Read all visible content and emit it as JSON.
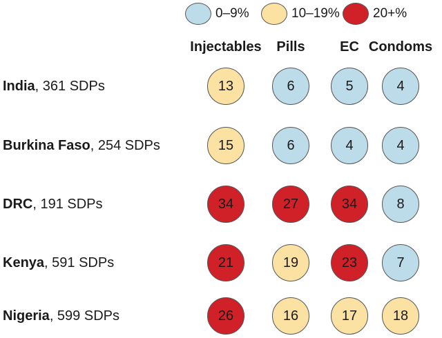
{
  "colors": {
    "low": "#bcdcea",
    "mid": "#fbe2a3",
    "high": "#d02128"
  },
  "chart_data": {
    "type": "table",
    "title": "",
    "legend": [
      {
        "label": "0–9%",
        "level": "low"
      },
      {
        "label": "10–19%",
        "level": "mid"
      },
      {
        "label": "20+%",
        "level": "high"
      }
    ],
    "columns": [
      "Injectables",
      "Pills",
      "EC",
      "Condoms"
    ],
    "rows": [
      {
        "country": "India",
        "detail": ", 361 SDPs",
        "values": [
          13,
          6,
          5,
          4
        ]
      },
      {
        "country": "Burkina Faso",
        "detail": ", 254 SDPs",
        "values": [
          15,
          6,
          4,
          4
        ]
      },
      {
        "country": "DRC",
        "detail": ", 191 SDPs",
        "values": [
          34,
          27,
          34,
          8
        ]
      },
      {
        "country": "Kenya",
        "detail": ", 591 SDPs",
        "values": [
          21,
          19,
          23,
          7
        ]
      },
      {
        "country": "Nigeria",
        "detail": ", 599 SDPs",
        "values": [
          26,
          16,
          17,
          18
        ]
      }
    ]
  }
}
